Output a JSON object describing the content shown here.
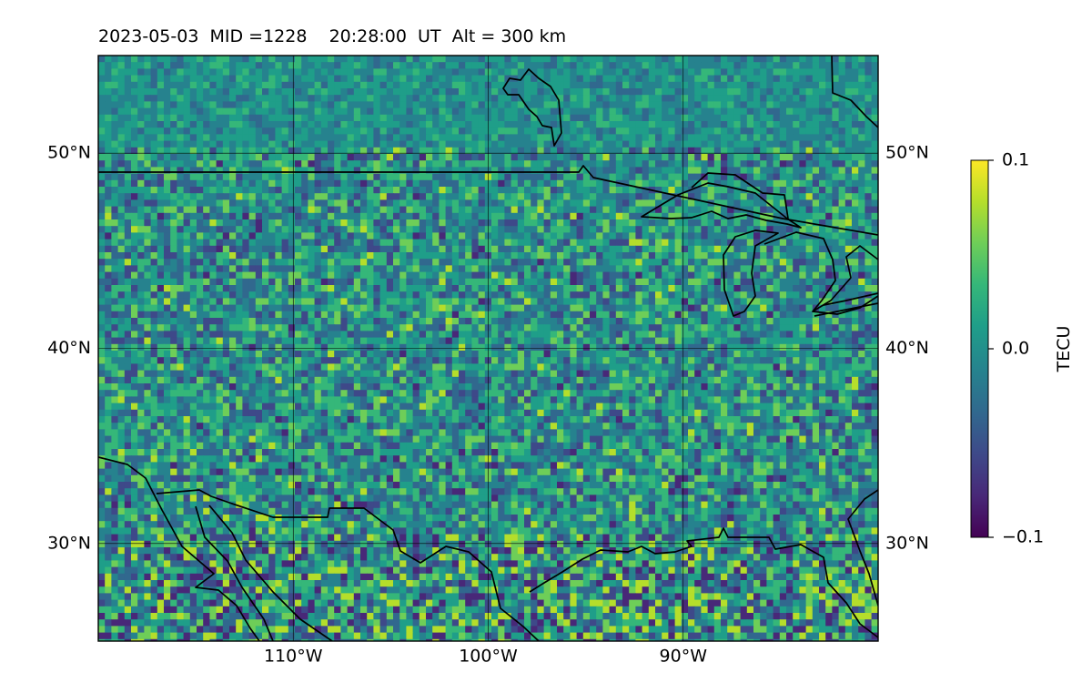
{
  "title": "2023-05-03  MID =1228    20:28:00  UT  Alt = 300 km",
  "map": {
    "lon_range": [
      -120,
      -80
    ],
    "lat_range": [
      25,
      55
    ],
    "lat_ticks": [
      {
        "value": 50,
        "label": "50°N"
      },
      {
        "value": 40,
        "label": "40°N"
      },
      {
        "value": 30,
        "label": "30°N"
      }
    ],
    "lon_ticks": [
      {
        "value": -110,
        "label": "110°W"
      },
      {
        "value": -100,
        "label": "100°W"
      },
      {
        "value": -90,
        "label": "90°W"
      }
    ],
    "grid": true,
    "field_name": "TEC perturbation",
    "colormap": "viridis"
  },
  "colorbar": {
    "label": "TECU",
    "min": -0.1,
    "max": 0.1,
    "ticks": [
      {
        "value": 0.1,
        "label": "0.1"
      },
      {
        "value": 0.0,
        "label": "0.0"
      },
      {
        "value": -0.1,
        "label": "−0.1"
      }
    ]
  },
  "colors": {
    "viridis": [
      "#440154",
      "#482878",
      "#3e4989",
      "#31688e",
      "#26828e",
      "#1f9e89",
      "#35b779",
      "#6ece58",
      "#b5de2b",
      "#fde725"
    ],
    "coastline": "#000000",
    "gridline": "#000000"
  }
}
